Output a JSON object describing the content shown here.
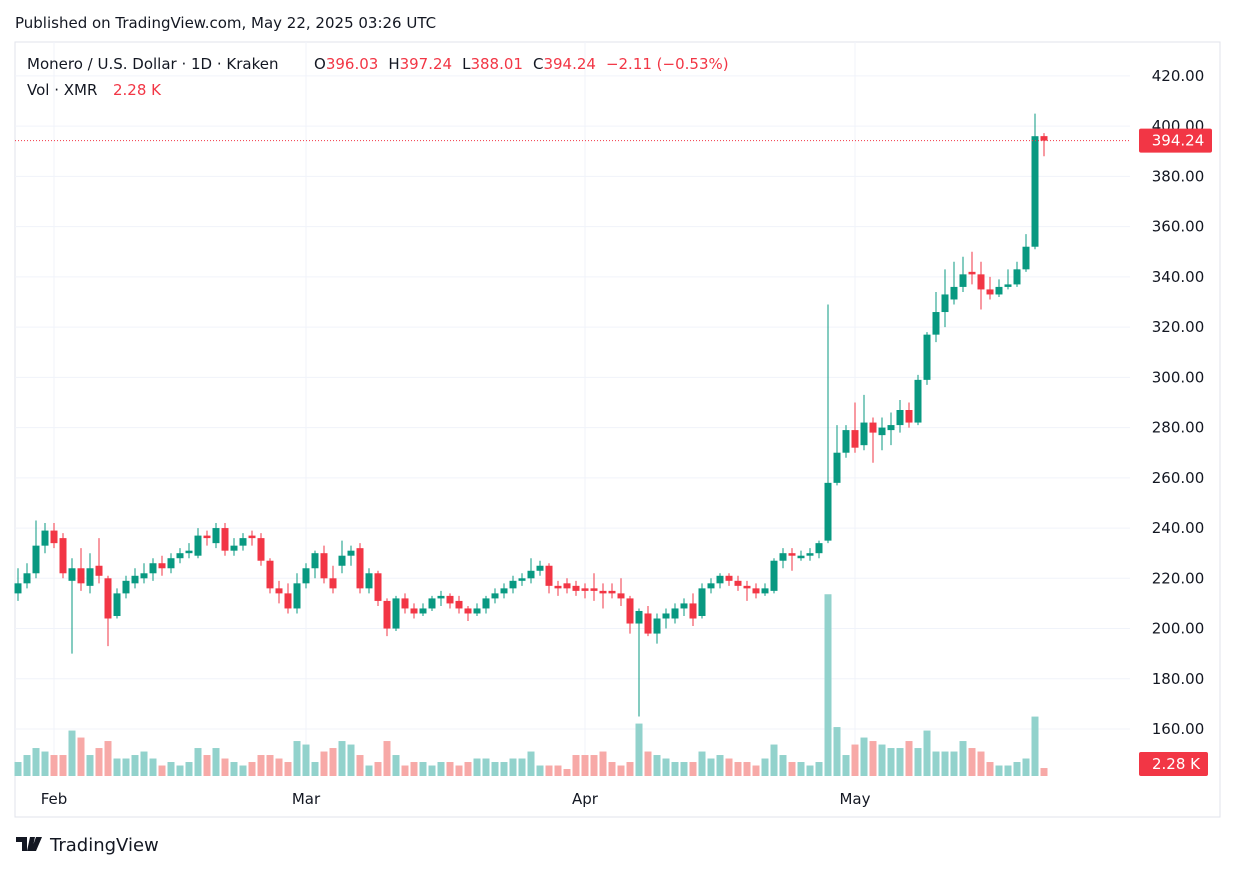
{
  "published": "Published on TradingView.com, May 22, 2025 03:26 UTC",
  "footer": "TradingView",
  "chart_data": {
    "type": "candlestick",
    "title": "Monero / U.S. Dollar · 1D · Kraken",
    "ohlc_header": {
      "o_label": "O",
      "o": "396.03",
      "h_label": "H",
      "h": "397.24",
      "l_label": "L",
      "l": "388.01",
      "c_label": "C",
      "c": "394.24",
      "change": "−2.11 (−0.53%)"
    },
    "volume_header": {
      "label": "Vol · XMR",
      "value": "2.28 K"
    },
    "last_price_label": "394.24",
    "last_volume_label": "2.28 K",
    "up_color": "#089981",
    "down_color": "#f23645",
    "volume_up_color": "#92d2cc",
    "volume_down_color": "#f7a9a7",
    "categories": [
      null,
      null,
      null,
      null,
      "Feb",
      null,
      null,
      null,
      null,
      null,
      null,
      null,
      null,
      null,
      null,
      null,
      null,
      null,
      null,
      null,
      null,
      null,
      null,
      null,
      null,
      null,
      null,
      null,
      null,
      null,
      null,
      null,
      "Mar",
      null,
      null,
      null,
      null,
      null,
      null,
      null,
      null,
      null,
      null,
      null,
      null,
      null,
      null,
      null,
      null,
      null,
      null,
      null,
      null,
      null,
      null,
      null,
      null,
      null,
      null,
      null,
      null,
      null,
      null,
      "Apr",
      null,
      null,
      null,
      null,
      null,
      null,
      null,
      null,
      null,
      null,
      null,
      null,
      null,
      null,
      null,
      null,
      null,
      null,
      null,
      null,
      null,
      null,
      null,
      null,
      null,
      null,
      null,
      null,
      null,
      "May",
      null,
      null,
      null,
      null,
      null,
      null,
      null,
      null,
      null,
      null,
      null,
      null,
      null,
      null,
      null,
      null,
      null,
      null,
      null,
      null,
      null
    ],
    "series": [
      {
        "name": "open",
        "values": [
          214,
          218,
          222,
          233,
          239,
          236,
          219,
          224,
          217,
          225,
          220,
          205,
          214,
          218,
          220,
          222,
          226,
          224,
          228,
          230,
          229,
          237,
          234,
          240,
          231,
          233,
          237,
          236,
          227,
          216,
          214,
          208,
          218,
          224,
          230,
          220,
          225,
          229,
          232,
          216,
          222,
          211,
          200,
          212,
          208,
          206,
          208,
          212,
          213,
          211,
          208,
          206,
          208,
          212,
          214,
          216,
          219,
          220,
          223,
          225,
          217,
          218,
          217,
          216,
          216,
          215,
          215,
          214,
          212,
          202,
          206,
          198,
          204,
          204,
          208,
          210,
          205,
          216,
          218,
          221,
          219,
          217,
          216,
          214,
          215,
          227,
          230,
          228,
          229,
          230,
          235,
          258,
          270,
          279,
          273,
          282,
          277,
          279,
          281,
          287,
          282,
          299,
          317,
          326,
          331,
          336,
          342,
          341,
          335,
          333,
          336,
          337,
          343,
          352,
          396.03
        ]
      },
      {
        "name": "high",
        "values": [
          224,
          226,
          243,
          242,
          242,
          238,
          228,
          232,
          230,
          236,
          221,
          216,
          221,
          224,
          226,
          228,
          229,
          230,
          232,
          234,
          240,
          239,
          242,
          242,
          236,
          238,
          239,
          238,
          228,
          219,
          218,
          222,
          226,
          231,
          233,
          225,
          235,
          233,
          234,
          224,
          223,
          212,
          213,
          214,
          210,
          210,
          213,
          215,
          214,
          213,
          209,
          210,
          213,
          216,
          218,
          221,
          222,
          228,
          227,
          226,
          219,
          220,
          219,
          218,
          222,
          218,
          218,
          220,
          213,
          208,
          209,
          206,
          208,
          210,
          212,
          214,
          218,
          220,
          222,
          222,
          221,
          219,
          218,
          218,
          228,
          232,
          232,
          231,
          232,
          235,
          329,
          281,
          281,
          290,
          293,
          284,
          284,
          286,
          291,
          290,
          301,
          318,
          334,
          343,
          346,
          348,
          350,
          346,
          340,
          339,
          343,
          346,
          357,
          405,
          397.24
        ]
      },
      {
        "name": "low",
        "values": [
          211,
          216,
          220,
          230,
          232,
          220,
          190,
          215,
          214,
          218,
          193,
          204,
          212,
          216,
          218,
          219,
          221,
          222,
          226,
          228,
          228,
          233,
          232,
          229,
          229,
          231,
          233,
          225,
          214,
          210,
          206,
          206,
          216,
          220,
          218,
          214,
          222,
          225,
          214,
          214,
          209,
          197,
          199,
          206,
          204,
          205,
          207,
          209,
          208,
          206,
          203,
          205,
          206,
          210,
          212,
          214,
          217,
          218,
          221,
          214,
          213,
          214,
          213,
          212,
          211,
          208,
          212,
          209,
          198,
          165,
          197,
          194,
          200,
          202,
          205,
          201,
          204,
          214,
          216,
          217,
          215,
          211,
          212,
          213,
          214,
          224,
          223,
          227,
          227,
          228,
          234,
          257,
          268,
          270,
          271,
          266,
          271,
          273,
          278,
          280,
          281,
          297,
          314,
          320,
          329,
          334,
          337,
          327,
          331,
          332,
          335,
          336,
          342,
          351,
          388.01
        ]
      },
      {
        "name": "close",
        "values": [
          218,
          222,
          233,
          239,
          234,
          222,
          224,
          218,
          224,
          221,
          204,
          214,
          219,
          221,
          222,
          226,
          224,
          228,
          230,
          231,
          237,
          236,
          240,
          231,
          233,
          236,
          236,
          227,
          216,
          214,
          208,
          218,
          224,
          230,
          220,
          216,
          229,
          231,
          216,
          222,
          211,
          200,
          212,
          208,
          206,
          208,
          212,
          213,
          210,
          208,
          206,
          208,
          212,
          214,
          216,
          219,
          220,
          223,
          225,
          217,
          216,
          216,
          215,
          215,
          215,
          214,
          214,
          212,
          202,
          207,
          198,
          204,
          206,
          208,
          210,
          204,
          216,
          218,
          221,
          219,
          217,
          216,
          214,
          216,
          227,
          230,
          229,
          229,
          230,
          234,
          258,
          270,
          279,
          272,
          282,
          278,
          280,
          281,
          287,
          282,
          299,
          317,
          326,
          333,
          336,
          341,
          341,
          335,
          333,
          336,
          337,
          343,
          352,
          396,
          394.24
        ]
      },
      {
        "name": "volume",
        "values": [
          4,
          6,
          8,
          7,
          6,
          6,
          13,
          11,
          6,
          8,
          10,
          5,
          5,
          6,
          7,
          5,
          3,
          4,
          3,
          4,
          8,
          6,
          8,
          5,
          4,
          3,
          4,
          6,
          6,
          5,
          4,
          10,
          9,
          4,
          7,
          8,
          10,
          9,
          6,
          3,
          4,
          10,
          6,
          3,
          4,
          4,
          3,
          4,
          4,
          3,
          4,
          5,
          5,
          4,
          4,
          5,
          5,
          7,
          3,
          3,
          3,
          2,
          6,
          6,
          6,
          7,
          4,
          3,
          4,
          15,
          7,
          6,
          5,
          4,
          4,
          4,
          7,
          5,
          6,
          5,
          4,
          4,
          3,
          5,
          9,
          6,
          4,
          4,
          3,
          4,
          52,
          14,
          6,
          9,
          11,
          10,
          9,
          8,
          8,
          10,
          8,
          13,
          7,
          7,
          7,
          10,
          8,
          7,
          4,
          3,
          3,
          4,
          5,
          17,
          2.28
        ]
      }
    ],
    "ylim": [
      141.3,
      433.5
    ],
    "volume_ylim": [
      0,
      210
    ],
    "yticks": [
      {
        "value": 160,
        "label": "160.00"
      },
      {
        "value": 180,
        "label": "180.00"
      },
      {
        "value": 200,
        "label": "200.00"
      },
      {
        "value": 220,
        "label": "220.00"
      },
      {
        "value": 240,
        "label": "240.00"
      },
      {
        "value": 260,
        "label": "260.00"
      },
      {
        "value": 280,
        "label": "280.00"
      },
      {
        "value": 300,
        "label": "300.00"
      },
      {
        "value": 320,
        "label": "320.00"
      },
      {
        "value": 340,
        "label": "340.00"
      },
      {
        "value": 360,
        "label": "360.00"
      },
      {
        "value": 380,
        "label": "380.00"
      },
      {
        "value": 400,
        "label": "400.00"
      },
      {
        "value": 420,
        "label": "420.00"
      }
    ],
    "grid": true
  }
}
